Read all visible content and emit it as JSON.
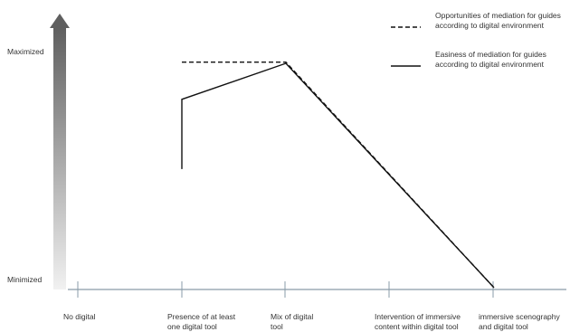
{
  "chart_data": {
    "type": "line",
    "title": "",
    "xlabel": "",
    "ylabel": "",
    "categories": [
      [
        "No digital"
      ],
      [
        "Presence of at least",
        "one digital tool"
      ],
      [
        "Mix of digital",
        "tool"
      ],
      [
        "Intervention of immersive",
        "content within digital tool"
      ],
      [
        "immersive scenography",
        "and digital tool"
      ]
    ],
    "y_levels": [
      "Minimized",
      "Maximized"
    ],
    "ylim": [
      0,
      1
    ],
    "grid": false,
    "legend_position": "top-right",
    "series": [
      {
        "name": [
          "Opportunities of mediation for guides",
          "according to digital environment"
        ],
        "style": "dashed",
        "color": "#111111",
        "points": [
          [
            1,
            0.97
          ],
          [
            2,
            0.97
          ],
          [
            4,
            0.0
          ]
        ]
      },
      {
        "name": [
          "Easiness of mediation for guides",
          "according to digital environment"
        ],
        "style": "solid",
        "color": "#111111",
        "points": [
          [
            1,
            0.51
          ],
          [
            1,
            0.81
          ],
          [
            2,
            0.965
          ],
          [
            4,
            0.0
          ]
        ]
      }
    ],
    "colors": {
      "axis": "#8a9ba8",
      "arrow_top": "#5f5f5f",
      "arrow_bottom": "#f1f1f1"
    }
  }
}
